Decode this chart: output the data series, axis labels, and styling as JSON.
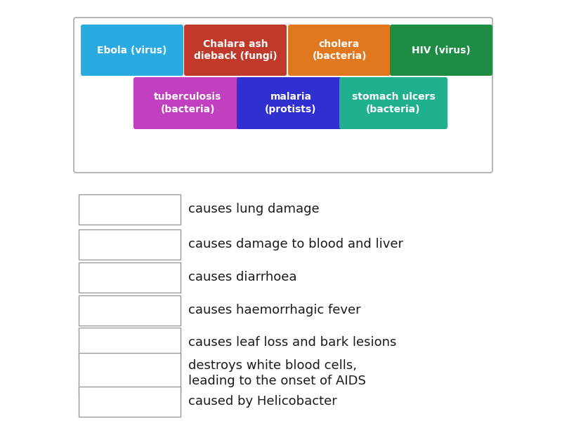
{
  "bg_color": "#ffffff",
  "container_border": "#aaaaaa",
  "tags": [
    {
      "label": "Ebola (virus)",
      "color": "#29abe2",
      "text_color": "#ffffff",
      "row": 0,
      "col": 0
    },
    {
      "label": "Chalara ash\ndieback (fungi)",
      "color": "#c0392b",
      "text_color": "#ffffff",
      "row": 0,
      "col": 1
    },
    {
      "label": "cholera\n(bacteria)",
      "color": "#e07820",
      "text_color": "#ffffff",
      "row": 0,
      "col": 2
    },
    {
      "label": "HIV (virus)",
      "color": "#1e8c45",
      "text_color": "#ffffff",
      "row": 0,
      "col": 3
    },
    {
      "label": "tuberculosis\n(bacteria)",
      "color": "#c040c0",
      "text_color": "#ffffff",
      "row": 1,
      "col": 0
    },
    {
      "label": "malaria\n(protists)",
      "color": "#3030d0",
      "text_color": "#ffffff",
      "row": 1,
      "col": 1
    },
    {
      "label": "stomach ulcers\n(bacteria)",
      "color": "#20b090",
      "text_color": "#ffffff",
      "row": 1,
      "col": 2
    }
  ],
  "items": [
    "causes lung damage",
    "causes damage to blood and liver",
    "causes diarrhoea",
    "causes haemorrhagic fever",
    "causes leaf loss and bark lesions",
    "destroys white blood cells,\nleading to the onset of AIDS",
    "caused by Helicobacter"
  ],
  "fig_w": 8.0,
  "fig_h": 6.0,
  "dpi": 100
}
